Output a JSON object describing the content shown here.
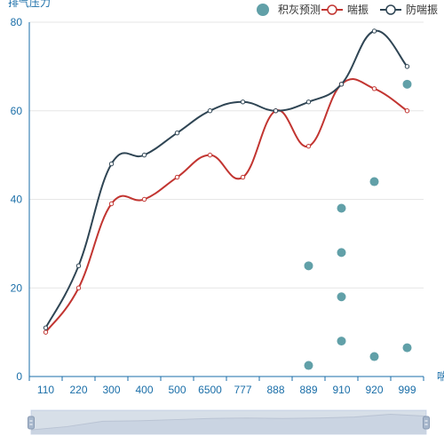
{
  "chart_data": {
    "type": "line",
    "categories": [
      "110",
      "220",
      "300",
      "400",
      "500",
      "6500",
      "777",
      "888",
      "889",
      "910",
      "920",
      "999"
    ],
    "ylabel": "排气压力",
    "xlabel": "喘",
    "ylim": [
      0,
      80
    ],
    "yticks": [
      0,
      20,
      40,
      60,
      80
    ],
    "grid": true,
    "legend_position": "top-right",
    "series": [
      {
        "name": "积灰预测",
        "kind": "scatter",
        "color": "#61a0a8",
        "points": [
          {
            "x": "889",
            "y": 25
          },
          {
            "x": "889",
            "y": 2.5
          },
          {
            "x": "910",
            "y": 38
          },
          {
            "x": "910",
            "y": 28
          },
          {
            "x": "910",
            "y": 18
          },
          {
            "x": "910",
            "y": 8
          },
          {
            "x": "920",
            "y": 44
          },
          {
            "x": "920",
            "y": 4.5
          },
          {
            "x": "999",
            "y": 66
          },
          {
            "x": "999",
            "y": 6.5
          }
        ]
      },
      {
        "name": "喘振",
        "kind": "line",
        "color": "#c23531",
        "values": [
          10,
          20,
          39,
          40,
          45,
          50,
          45,
          60,
          52,
          66,
          65,
          60
        ]
      },
      {
        "name": "防喘振",
        "kind": "line",
        "color": "#2f4554",
        "values": [
          11,
          25,
          48,
          50,
          55,
          60,
          62,
          60,
          62,
          66,
          78,
          70
        ]
      }
    ],
    "datazoom": {
      "start": 0,
      "end": 100
    }
  }
}
